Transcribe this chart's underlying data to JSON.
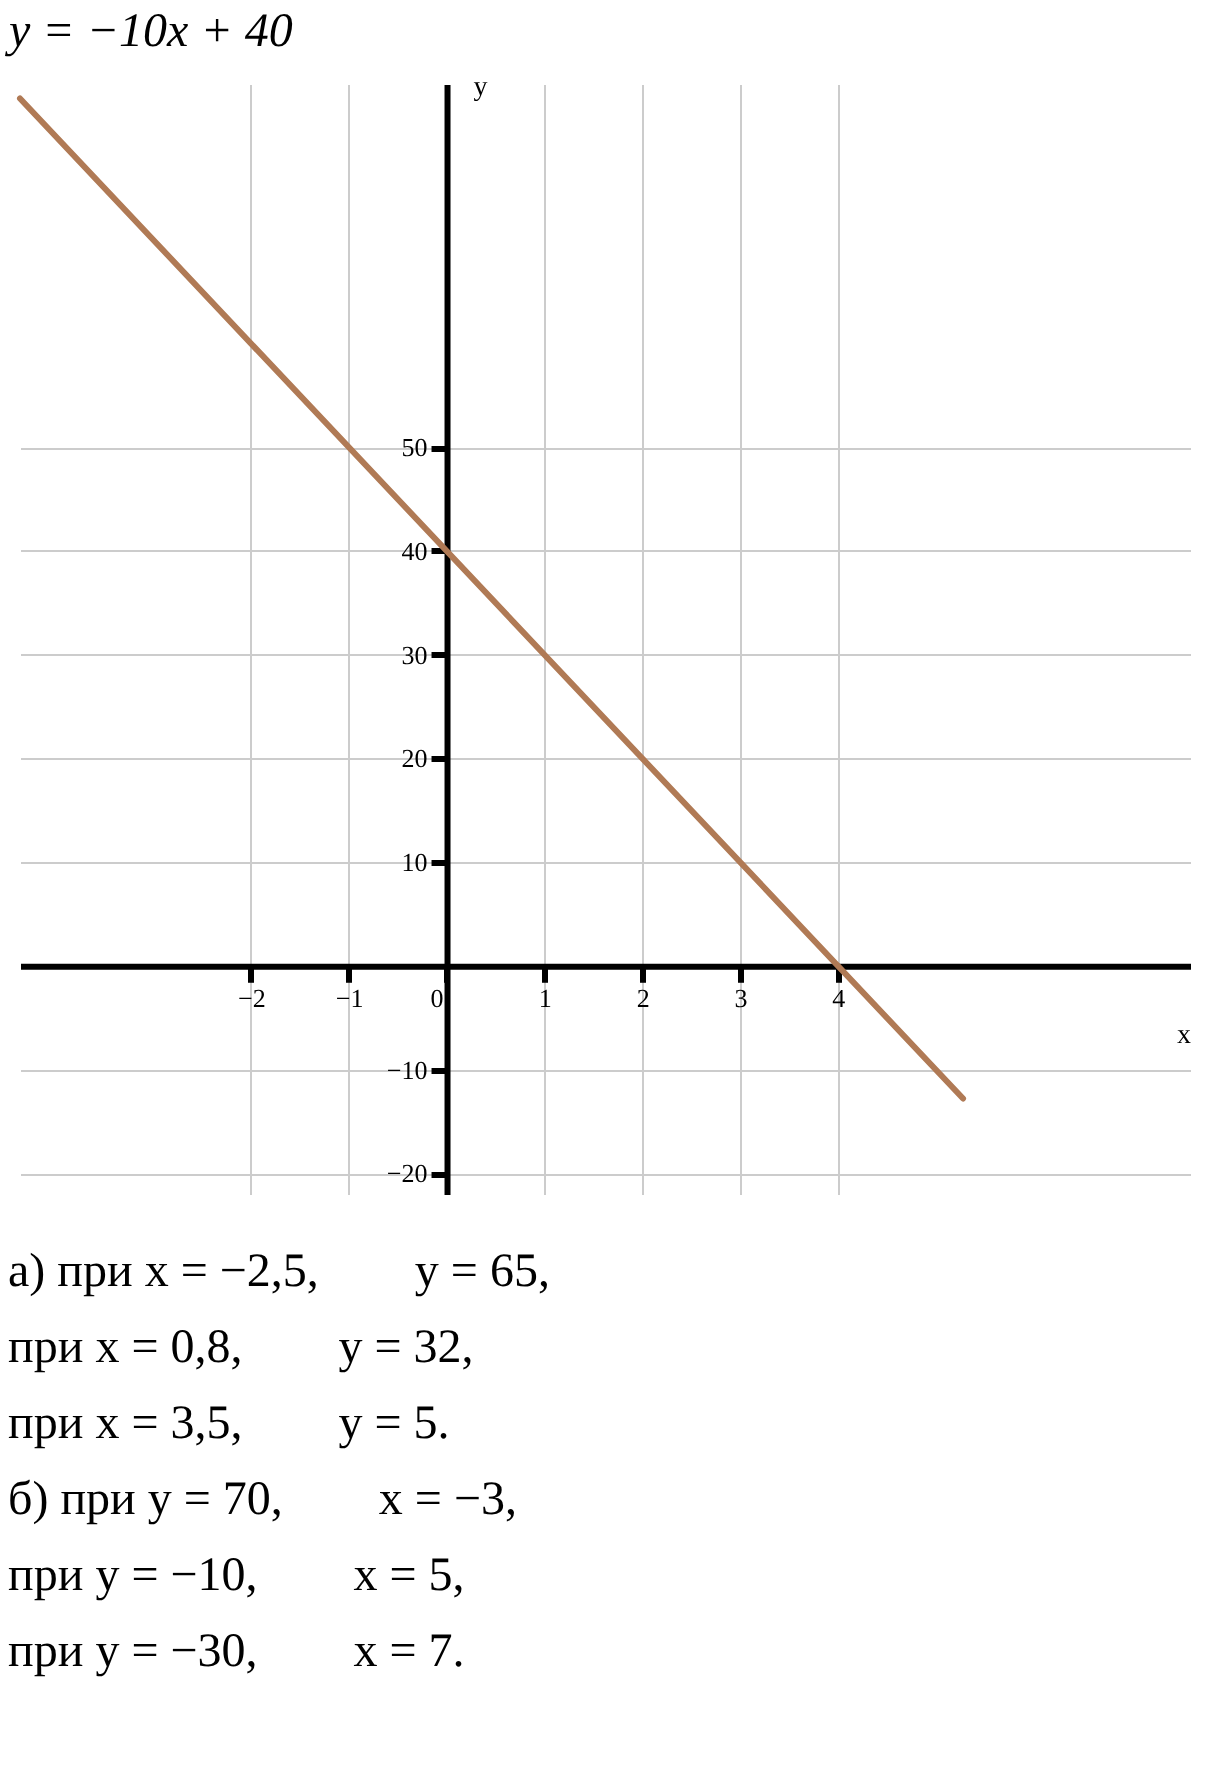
{
  "chart_data": {
    "type": "line",
    "title": "y = −10x + 40",
    "xlabel": "x",
    "ylabel": "y",
    "series": [
      {
        "color": "#b07a55",
        "x": [
          -4.36,
          5.28
        ],
        "values": [
          83.6,
          -12.8
        ]
      }
    ],
    "xlim": [
      -4.36,
      7.6
    ],
    "ylim": [
      -22,
      85
    ],
    "xticks": [
      -2,
      -1,
      0,
      1,
      2,
      3,
      4
    ],
    "yticks": [
      -20,
      -10,
      10,
      20,
      30,
      40,
      50
    ],
    "grid": true,
    "marker": "none",
    "line_style": "solid",
    "annotations": [
      "а) при x = −2,5,        y = 65,",
      "при x = 0,8,        y = 32,",
      "при x = 3,5,        y = 5.",
      "б) при y = 70,        x = −3,",
      "при y = −10,        x = 5,",
      "при y = −30,        x = 7."
    ]
  }
}
